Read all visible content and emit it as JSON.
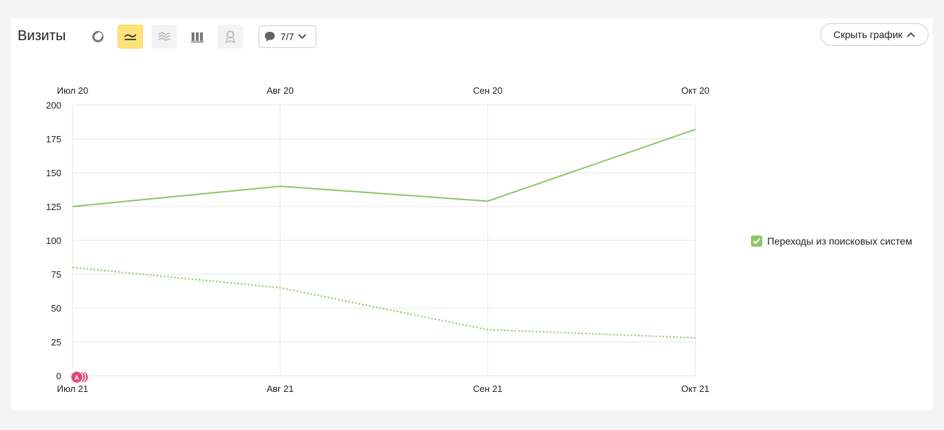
{
  "header": {
    "title": "Визиты",
    "comments_label": "7/7",
    "hide_chart_label": "Скрыть график"
  },
  "toolbar": {
    "icons": [
      "pie-chart-icon",
      "line-chart-icon",
      "area-chart-icon",
      "bar-chart-icon",
      "map-icon"
    ],
    "active": "line-chart-icon"
  },
  "legend": {
    "items": [
      {
        "label": "Переходы из поисковых систем",
        "color": "#8cc665",
        "checked": true
      }
    ]
  },
  "colors": {
    "series": "#8cc665",
    "grid": "#e6e6e6",
    "annotation": "#e0457b"
  },
  "chart_data": {
    "type": "line",
    "x_top": [
      "Июл 20",
      "Авг 20",
      "Сен 20",
      "Окт 20"
    ],
    "x_bottom": [
      "Июл 21",
      "Авг 21",
      "Сен 21",
      "Окт 21"
    ],
    "ylim": [
      0,
      200
    ],
    "yticks": [
      0,
      25,
      50,
      75,
      100,
      125,
      150,
      175,
      200
    ],
    "grid": true,
    "legend_position": "right",
    "series": [
      {
        "name": "Переходы из поисковых систем",
        "period": "Июл 21 – Окт 21",
        "style": "solid",
        "values": [
          125,
          140,
          129,
          182
        ]
      },
      {
        "name": "Переходы из поисковых систем",
        "period": "Июл 20 – Окт 20",
        "style": "dotted",
        "values": [
          80,
          65,
          34,
          28
        ]
      }
    ],
    "annotation_marker": "A"
  }
}
